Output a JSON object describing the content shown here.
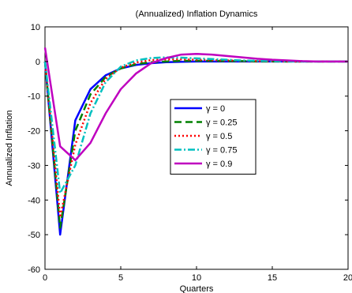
{
  "chart_data": {
    "type": "line",
    "title": "(Annualized) Inflation Dynamics",
    "xlabel": "Quarters",
    "ylabel": "Annualized Inflation",
    "xlim": [
      0,
      20
    ],
    "ylim": [
      -60,
      10
    ],
    "xticks": [
      0,
      5,
      10,
      15,
      20
    ],
    "yticks": [
      10,
      0,
      -10,
      -20,
      -30,
      -40,
      -50,
      -60
    ],
    "grid": false,
    "legend_position": "center-right",
    "x": [
      0,
      1,
      2,
      3,
      4,
      5,
      6,
      7,
      8,
      9,
      10,
      11,
      12,
      13,
      14,
      15,
      16,
      17,
      18,
      19,
      20
    ],
    "series": [
      {
        "name": "γ = 0",
        "color": "#0000ff",
        "dash": "solid",
        "values": [
          0,
          -50,
          -17,
          -8,
          -4,
          -2,
          -1,
          -0.5,
          -0.2,
          -0.1,
          0,
          0,
          0,
          0,
          0,
          0,
          0,
          0,
          0,
          0,
          0
        ]
      },
      {
        "name": "γ = 0.25",
        "color": "#008000",
        "dash": "dashed",
        "values": [
          0,
          -48,
          -20,
          -9.5,
          -4.5,
          -2,
          -0.8,
          -0.2,
          0,
          0.2,
          0.2,
          0.2,
          0.1,
          0.1,
          0,
          0,
          0,
          0,
          0,
          0,
          0
        ]
      },
      {
        "name": "γ = 0.5",
        "color": "#ff0000",
        "dash": "dotted",
        "values": [
          0,
          -45,
          -24,
          -12,
          -5,
          -1.8,
          -0.3,
          0.4,
          0.6,
          0.6,
          0.5,
          0.4,
          0.3,
          0.2,
          0.1,
          0.05,
          0,
          0,
          0,
          0,
          0
        ]
      },
      {
        "name": "γ = 0.75",
        "color": "#00c0c0",
        "dash": "dashdot",
        "values": [
          0,
          -38,
          -30,
          -15,
          -6,
          -1.5,
          0.3,
          1,
          1.2,
          1.1,
          0.9,
          0.7,
          0.5,
          0.3,
          0.2,
          0.1,
          0.05,
          0,
          0,
          0,
          0
        ]
      },
      {
        "name": "γ = 0.9",
        "color": "#bf00bf",
        "dash": "solid",
        "values": [
          4,
          -24.5,
          -28.5,
          -23.5,
          -15,
          -8,
          -3.5,
          -0.5,
          1,
          2,
          2.2,
          2,
          1.6,
          1.2,
          0.8,
          0.5,
          0.3,
          0.1,
          0,
          0,
          0
        ]
      }
    ]
  }
}
